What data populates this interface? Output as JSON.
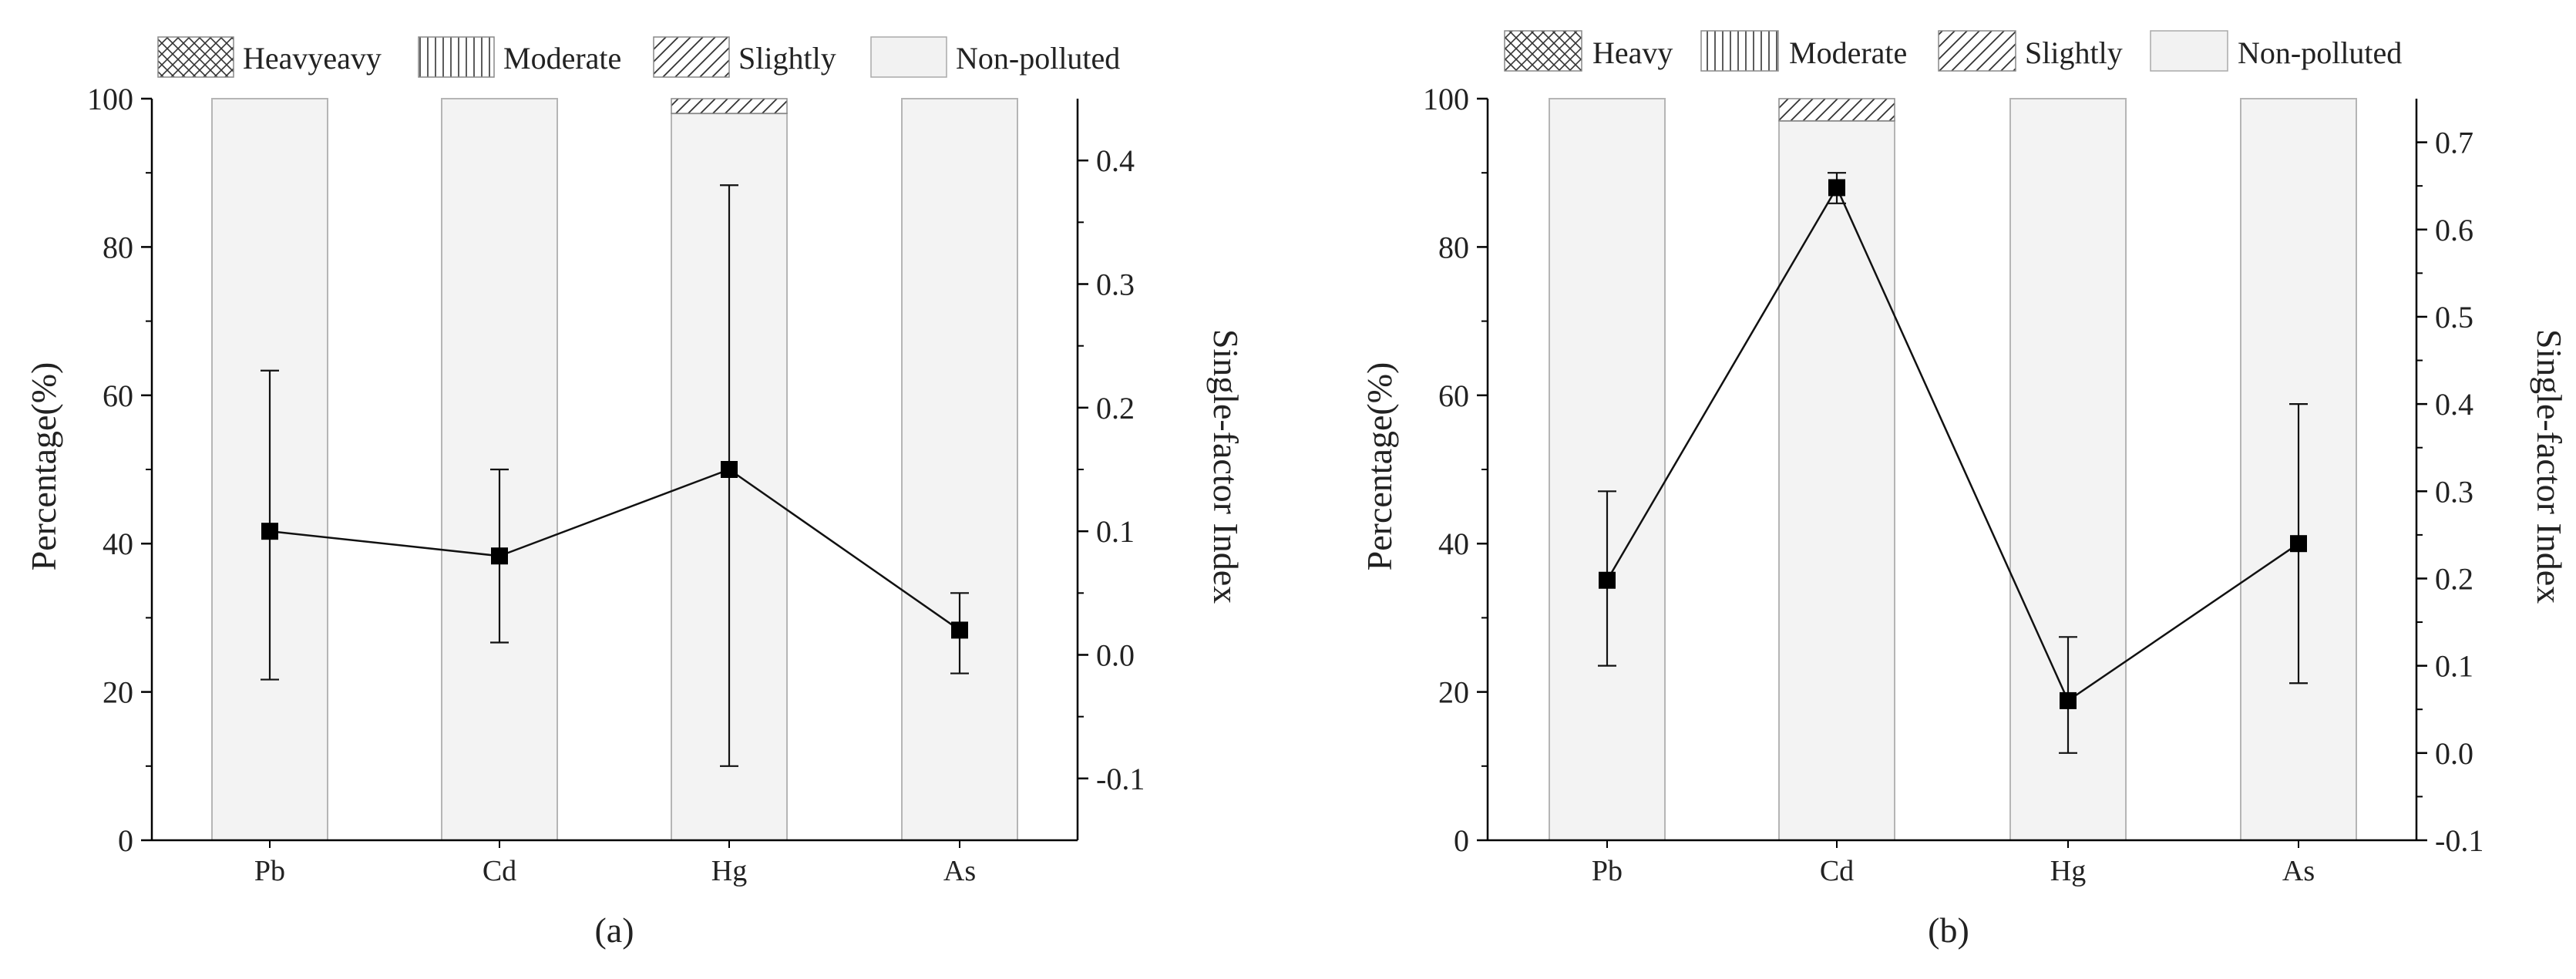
{
  "chart_data": [
    {
      "type": "bar+line",
      "caption": "(a)",
      "categories": [
        "Pb",
        "Cd",
        "Hg",
        "As"
      ],
      "legend": [
        "Heavyeavy",
        "Moderate",
        "Slightly",
        "Non-polluted"
      ],
      "ylabel_left": "Percentage(%)",
      "ylabel_right": "Single-factor Index",
      "ylim_left": [
        0,
        100
      ],
      "ylim_right": [
        -0.15,
        0.45
      ],
      "yticks_left": [
        "0",
        "20",
        "40",
        "60",
        "80",
        "100"
      ],
      "yticks_right": [
        "-0.1",
        "0.0",
        "0.1",
        "0.2",
        "0.3",
        "0.4"
      ],
      "stacked_percent": {
        "Non-polluted": [
          100,
          100,
          98,
          100
        ],
        "Slightly": [
          0,
          0,
          2,
          0
        ],
        "Moderate": [
          0,
          0,
          0,
          0
        ],
        "Heavy": [
          0,
          0,
          0,
          0
        ]
      },
      "index_mean": [
        0.1,
        0.08,
        0.15,
        0.02
      ],
      "index_err_low": [
        -0.02,
        0.01,
        -0.09,
        -0.015
      ],
      "index_err_high": [
        0.23,
        0.15,
        0.38,
        0.05
      ]
    },
    {
      "type": "bar+line",
      "caption": "(b)",
      "categories": [
        "Pb",
        "Cd",
        "Hg",
        "As"
      ],
      "legend": [
        "Heavy",
        "Moderate",
        "Slightly",
        "Non-polluted"
      ],
      "ylabel_left": "Percentage(%)",
      "ylabel_right": "Single-factor Index",
      "ylim_left": [
        0,
        100
      ],
      "ylim_right": [
        -0.1,
        0.75
      ],
      "yticks_left": [
        "0",
        "20",
        "40",
        "60",
        "80",
        "100"
      ],
      "yticks_right": [
        "-0.1",
        "0.0",
        "0.1",
        "0.2",
        "0.3",
        "0.4",
        "0.5",
        "0.6",
        "0.7"
      ],
      "stacked_percent": {
        "Non-polluted": [
          100,
          97,
          100,
          100
        ],
        "Slightly": [
          0,
          3,
          0,
          0
        ],
        "Moderate": [
          0,
          0,
          0,
          0
        ],
        "Heavy": [
          0,
          0,
          0,
          0
        ]
      },
      "index_mean": [
        0.198,
        0.648,
        0.06,
        0.24
      ],
      "index_err_low": [
        0.1,
        0.63,
        0.0,
        0.08
      ],
      "index_err_high": [
        0.3,
        0.665,
        0.133,
        0.4
      ]
    }
  ]
}
